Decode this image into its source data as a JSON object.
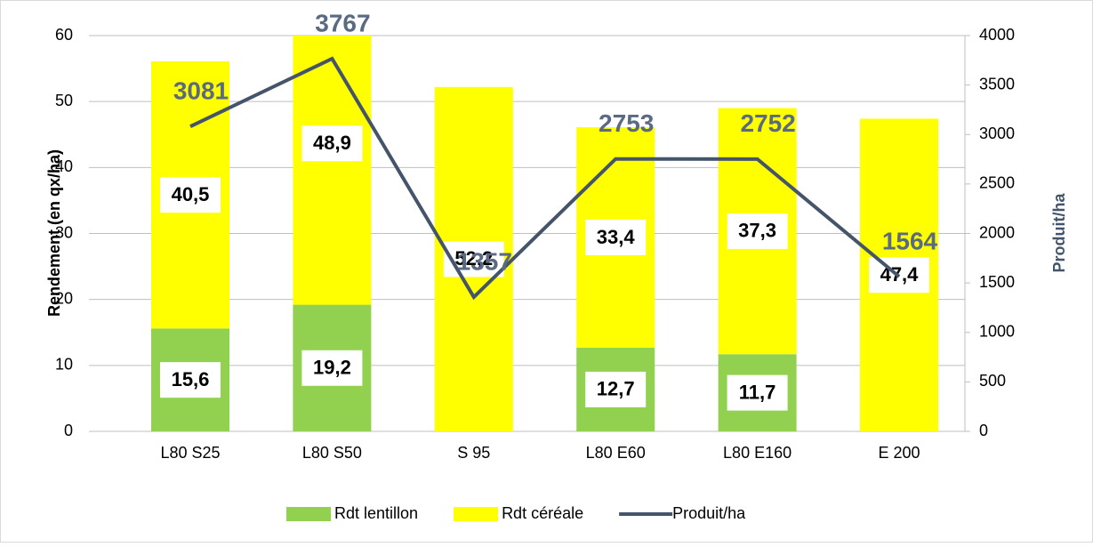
{
  "chart_data": {
    "type": "stacked-bar-line",
    "categories": [
      "L80 S25",
      "L80 S50",
      "S 95",
      "L80 E60",
      "L80 E160",
      "E 200"
    ],
    "y_label": "Rendement (en qx/ha)",
    "y2_label": "Produit/ha",
    "ylim": [
      0,
      60
    ],
    "yticks": [
      0,
      10,
      20,
      30,
      40,
      50,
      60
    ],
    "y2lim": [
      0,
      4000
    ],
    "y2ticks": [
      0,
      500,
      1000,
      1500,
      2000,
      2500,
      3000,
      3500,
      4000
    ],
    "grid": true,
    "legend": "bottom",
    "series": [
      {
        "name": "Rdt lentillon",
        "color": "#92d050",
        "values": [
          15.6,
          19.2,
          null,
          12.7,
          11.7,
          null
        ],
        "value_labels": [
          "15,6",
          "19,2",
          null,
          "12,7",
          "11,7",
          null
        ]
      },
      {
        "name": "Rdt céréale",
        "color": "#ffff00",
        "values": [
          40.5,
          48.9,
          52.2,
          33.4,
          37.3,
          47.4
        ],
        "value_labels": [
          "40,5",
          "48,9",
          "52,2",
          "33,4",
          "37,3",
          "47,4"
        ]
      },
      {
        "name": "Produit/ha",
        "color": "#44546a",
        "axis": "y2",
        "values": [
          3081,
          3767,
          1357,
          2753,
          2752,
          1564
        ]
      }
    ]
  }
}
